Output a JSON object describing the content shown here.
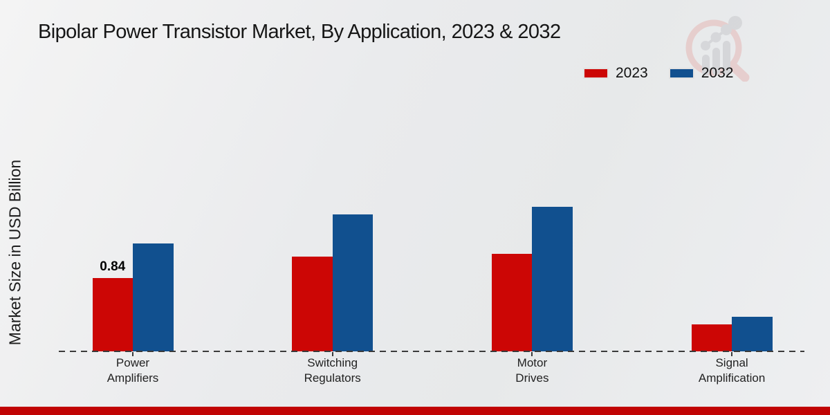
{
  "page": {
    "title": "Bipolar Power Transistor Market, By Application, 2023 & 2032",
    "y_axis_label": "Market Size in USD Billion"
  },
  "legend": {
    "position": "top-right",
    "items": [
      {
        "label": "2023",
        "color": "#cc0605"
      },
      {
        "label": "2032",
        "color": "#11508f"
      }
    ]
  },
  "chart_data": {
    "type": "bar",
    "title": "Bipolar Power Transistor Market, By Application, 2023 & 2032",
    "xlabel": "",
    "ylabel": "Market Size in USD Billion",
    "categories": [
      "Power\nAmplifiers",
      "Switching\nRegulators",
      "Motor\nDrives",
      "Signal\nAmplification"
    ],
    "series": [
      {
        "name": "2023",
        "color": "#cc0605",
        "values": [
          0.84,
          1.09,
          1.12,
          0.31
        ]
      },
      {
        "name": "2032",
        "color": "#11508f",
        "values": [
          1.24,
          1.57,
          1.66,
          0.4
        ]
      }
    ],
    "ylim": [
      0,
      2.0
    ],
    "grid": false,
    "axis_style": "dashed-baseline-only",
    "annotations": [
      {
        "series": 0,
        "category": 0,
        "text": "0.84"
      }
    ],
    "legend_position": "top-right"
  },
  "watermark": {
    "name": "magnifier-bar-chart-logo",
    "ring_color": "#e5b8b6",
    "bar_color": "#c6c6cb"
  },
  "footer": {
    "bar_color": "#c10404"
  }
}
